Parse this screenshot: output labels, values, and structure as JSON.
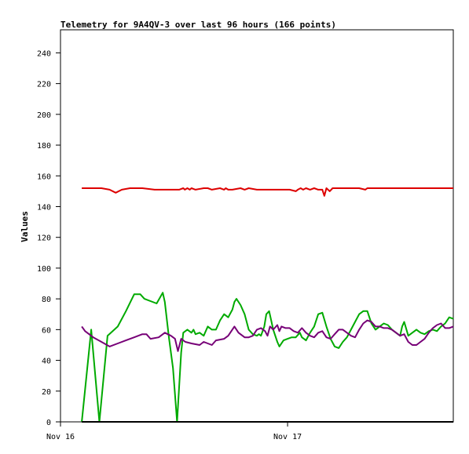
{
  "chart_data": {
    "type": "line",
    "title": "Telemetry for 9A4QV-3 over last 96 hours (166 points)",
    "xlabel": "",
    "ylabel": "Values",
    "ylim": [
      0,
      255
    ],
    "xlim": [
      0,
      96
    ],
    "grid": false,
    "legend": "none",
    "y_ticks": [
      0,
      20,
      40,
      60,
      80,
      100,
      120,
      140,
      160,
      180,
      200,
      220,
      240
    ],
    "x_tick_labels": [
      {
        "x": 0,
        "label": "Nov 16"
      },
      {
        "x": 55.5,
        "label": "Nov 17"
      }
    ],
    "series": [
      {
        "color": "#dd0000",
        "x": [
          5.2,
          8,
          10,
          12,
          13.5,
          15,
          17,
          20,
          23,
          26,
          29,
          30,
          30.4,
          31,
          31.6,
          32,
          33,
          35,
          36,
          37,
          39,
          40,
          40.4,
          41,
          42,
          44,
          45,
          46,
          48,
          50,
          52,
          54,
          56,
          57.5,
          58,
          58.7,
          59.3,
          60,
          61,
          62,
          63,
          64,
          64.5,
          65,
          65.8,
          66.5,
          67,
          68,
          70,
          73,
          74.5,
          75,
          76,
          80,
          85,
          90,
          96
        ],
        "values": [
          152,
          152,
          152,
          151,
          149,
          151,
          152,
          152,
          151,
          151,
          151,
          152,
          151,
          152,
          151,
          152,
          151,
          152,
          152,
          151,
          152,
          151,
          152,
          151,
          151,
          152,
          151,
          152,
          151,
          151,
          151,
          151,
          151,
          150,
          151,
          152,
          151,
          152,
          151,
          152,
          151,
          151,
          147,
          152,
          150,
          152,
          152,
          152,
          152,
          152,
          151,
          152,
          152,
          152,
          152,
          152,
          152
        ]
      },
      {
        "color": "#00aa00",
        "x": [
          5.2,
          7.5,
          9.5,
          11.5,
          14,
          16,
          18,
          19.5,
          20.5,
          23.5,
          25,
          25.5,
          26.5,
          27.5,
          28.5,
          29.5,
          30,
          31,
          32,
          32.5,
          33,
          34,
          35,
          36,
          37,
          38,
          39,
          40,
          41,
          42,
          42.5,
          43,
          44,
          45,
          46,
          47,
          48,
          48.5,
          49,
          49.8,
          50.3,
          51,
          52,
          53,
          53.5,
          54.5,
          55.5,
          56.5,
          57.5,
          58.5,
          59,
          60,
          61,
          62,
          62.5,
          63,
          64,
          65,
          66,
          67,
          68,
          69,
          70,
          71,
          72,
          73,
          74,
          75,
          76,
          77,
          78,
          79,
          80,
          81,
          82,
          83,
          83.5,
          84,
          85,
          86,
          87,
          88,
          89,
          90,
          91,
          92,
          93,
          94,
          95,
          96
        ],
        "values": [
          0,
          60,
          0,
          56,
          62,
          72,
          83,
          83,
          80,
          77,
          84,
          78,
          55,
          35,
          0,
          45,
          58,
          60,
          58,
          60,
          57,
          58,
          56,
          62,
          60,
          60,
          66,
          70,
          68,
          73,
          78,
          80,
          76,
          70,
          60,
          57,
          56,
          57,
          56,
          62,
          70,
          72,
          60,
          52,
          49,
          53,
          54,
          55,
          55,
          58,
          55,
          53,
          58,
          62,
          66,
          70,
          71,
          62,
          54,
          49,
          48,
          52,
          55,
          60,
          65,
          70,
          72,
          72,
          64,
          60,
          62,
          64,
          63,
          60,
          58,
          56,
          62,
          65,
          56,
          58,
          60,
          58,
          57,
          59,
          60,
          59,
          62,
          64,
          68,
          67
        ]
      },
      {
        "color": "#770077",
        "x": [
          5.2,
          6,
          8,
          10,
          12,
          14,
          16,
          18,
          20,
          21,
          22,
          24,
          25.5,
          27,
          28,
          28.7,
          29.5,
          30.5,
          32,
          34,
          35,
          37,
          38,
          40,
          41,
          42.5,
          43.5,
          45,
          46,
          47,
          48,
          49,
          50,
          50.6,
          51.2,
          52,
          53,
          53.5,
          54,
          55,
          56,
          57,
          58,
          59,
          60,
          61,
          62,
          63,
          64,
          65,
          66,
          67,
          68,
          69,
          70,
          71,
          72,
          73,
          74,
          75,
          76,
          77,
          78,
          79,
          80,
          81,
          82,
          83,
          84,
          85,
          86,
          87,
          88,
          89,
          90,
          91,
          92,
          93,
          94,
          95,
          96
        ],
        "values": [
          62,
          59,
          55,
          52,
          49,
          51,
          53,
          55,
          57,
          57,
          54,
          55,
          58,
          56,
          54,
          46,
          54,
          52,
          51,
          50,
          52,
          50,
          53,
          54,
          56,
          62,
          58,
          55,
          55,
          56,
          60,
          61,
          59,
          56,
          62,
          60,
          63,
          59,
          62,
          61,
          61,
          59,
          58,
          61,
          58,
          56,
          55,
          58,
          59,
          55,
          54,
          57,
          60,
          60,
          58,
          56,
          55,
          60,
          64,
          66,
          65,
          62,
          62,
          61,
          61,
          60,
          58,
          56,
          57,
          52,
          50,
          50,
          52,
          54,
          58,
          61,
          63,
          64,
          61,
          61,
          62
        ]
      },
      {
        "color": "#000000",
        "x": [
          5.2,
          96
        ],
        "values": [
          0,
          0
        ]
      }
    ]
  }
}
